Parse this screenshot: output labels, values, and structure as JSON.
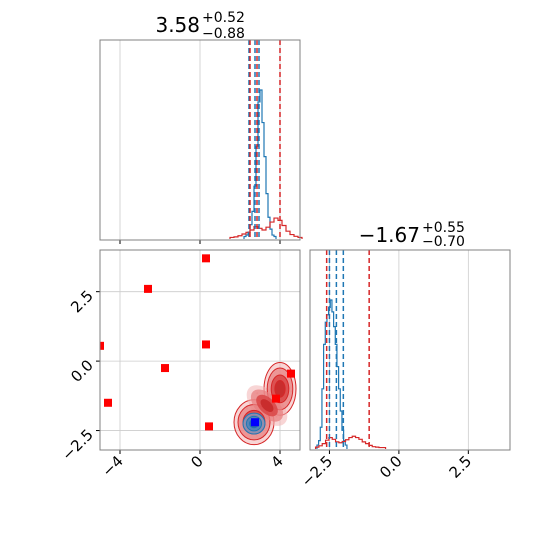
{
  "chart_data": {
    "type": "scatter",
    "layout": "corner-plot",
    "colors": {
      "blue": "#1f77b4",
      "red": "#d62728",
      "marker_red": "#ff0000",
      "marker_blue": "#0000ff",
      "grid": "#cccccc",
      "frame": "#808080"
    },
    "param1": {
      "median": "3.58",
      "plus": "+0.52",
      "minus": "−0.88",
      "xlim": [
        -5,
        5
      ],
      "ticks": [
        {
          "value": -4,
          "label": "−4"
        },
        {
          "value": 0,
          "label": "0"
        },
        {
          "value": 4,
          "label": "4"
        }
      ]
    },
    "param2": {
      "median": "−1.67",
      "plus": "+0.55",
      "minus": "−0.70",
      "xlim": [
        -3.2,
        4.0
      ],
      "ticks": [
        {
          "value": -2.5,
          "label": "−2.5"
        },
        {
          "value": 0,
          "label": "0.0"
        },
        {
          "value": 2.5,
          "label": "2.5"
        }
      ]
    },
    "scatter_ylim": [
      -3.2,
      4.0
    ],
    "scatter_yticks": [
      {
        "value": 2.5,
        "label": "2.5"
      },
      {
        "value": 0,
        "label": "0.0"
      },
      {
        "value": -2.5,
        "label": "−2.5"
      }
    ],
    "hist1_blue": {
      "start": 2.2,
      "width": 0.1,
      "counts": [
        1,
        2,
        4,
        9,
        18,
        35,
        62,
        92,
        100,
        78,
        55,
        30,
        14,
        6,
        2,
        1
      ]
    },
    "hist1_red": {
      "start": 1.5,
      "width": 0.2,
      "counts": [
        1,
        2,
        4,
        7,
        10,
        14,
        20,
        17,
        14,
        19,
        28,
        35,
        31,
        22,
        12,
        6,
        3,
        1
      ]
    },
    "hist1_blue_lines": [
      2.45,
      2.75,
      2.95
    ],
    "hist1_red_lines": [
      2.5,
      2.85,
      4.0
    ],
    "hist2_blue": {
      "start": -2.95,
      "width": 0.06,
      "counts": [
        2,
        5,
        14,
        40,
        70,
        85,
        90,
        95,
        100,
        92,
        82,
        70,
        55,
        40,
        25,
        12,
        5,
        2
      ]
    },
    "hist2_red": {
      "start": -3.0,
      "width": 0.12,
      "counts": [
        2,
        5,
        10,
        18,
        24,
        20,
        14,
        12,
        15,
        19,
        24,
        27,
        24,
        20,
        14,
        10,
        6,
        3,
        2,
        1,
        1
      ]
    },
    "hist2_blue_lines": [
      -2.5,
      -2.25,
      -2.0
    ],
    "hist2_red_lines": [
      -2.6,
      -1.07
    ],
    "red_points": [
      {
        "x": -5.0,
        "y": 0.55
      },
      {
        "x": -4.6,
        "y": -1.5
      },
      {
        "x": -2.6,
        "y": 2.6
      },
      {
        "x": -1.75,
        "y": -0.25
      },
      {
        "x": 0.3,
        "y": 3.7
      },
      {
        "x": 0.3,
        "y": 0.6
      },
      {
        "x": 0.45,
        "y": -2.35
      },
      {
        "x": 3.8,
        "y": -1.35
      },
      {
        "x": 4.55,
        "y": -0.45
      }
    ],
    "blue_point": {
      "x": 2.75,
      "y": -2.2
    },
    "contour_red_points": [
      {
        "x": 2.7,
        "y": -2.2
      },
      {
        "x": 4.0,
        "y": -1.0
      }
    ],
    "contour_blue_center": {
      "x": 2.7,
      "y": -2.25
    }
  }
}
